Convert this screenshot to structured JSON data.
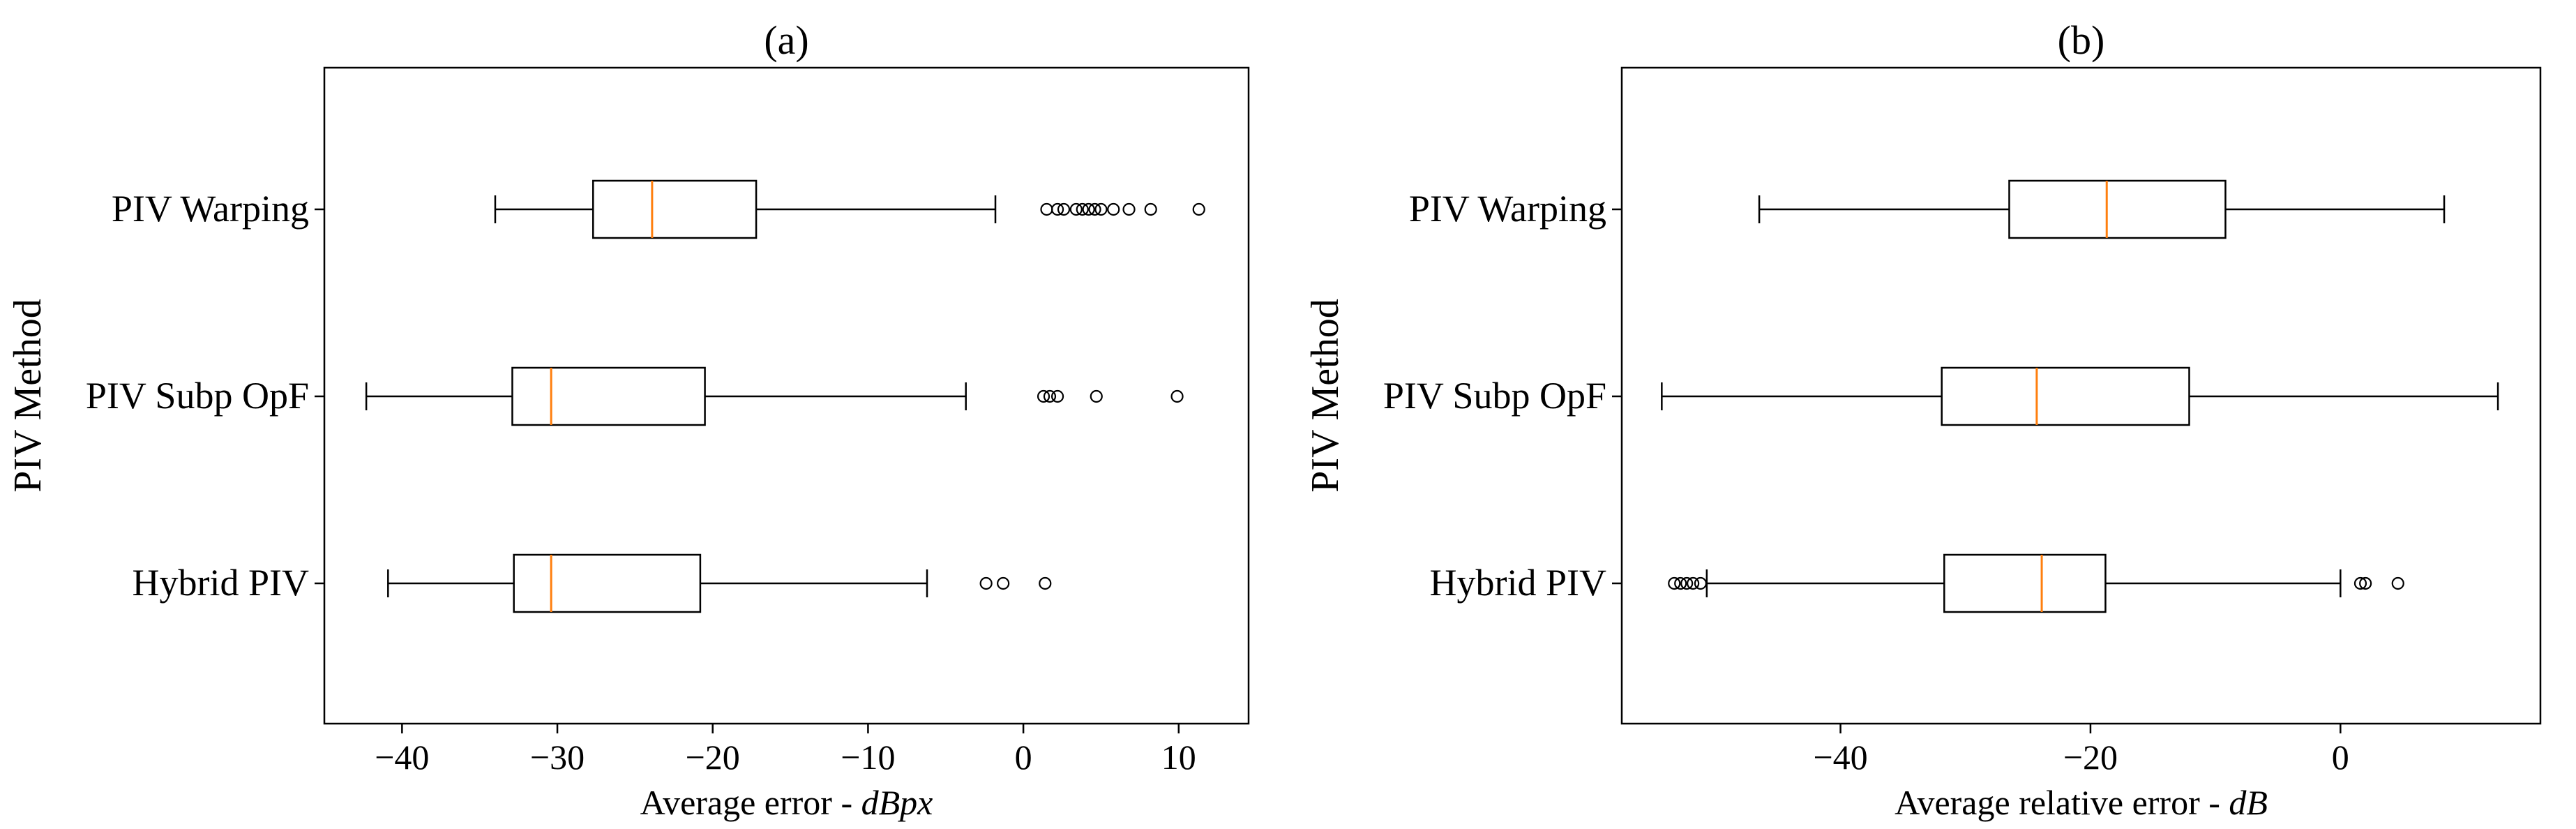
{
  "chart_data": [
    {
      "type": "boxplot",
      "orientation": "horizontal",
      "title": "(a)",
      "xlabel_prefix": "Average error - ",
      "xlabel_unit": "dBpx",
      "ylabel": "PIV Method",
      "xlim": [
        -45,
        14.5
      ],
      "xticks": [
        {
          "value": -40,
          "label": "−40"
        },
        {
          "value": -30,
          "label": "−30"
        },
        {
          "value": -20,
          "label": "−20"
        },
        {
          "value": -10,
          "label": "−10"
        },
        {
          "value": 0,
          "label": "0"
        },
        {
          "value": 10,
          "label": "10"
        }
      ],
      "median_color": "#ff7f0e",
      "series": [
        {
          "name": "PIV Warping",
          "whisker_low": -34,
          "q1": -27.7,
          "median": -23.9,
          "q3": -17.2,
          "whisker_high": -1.8,
          "outliers": [
            1.5,
            2.2,
            2.6,
            3.4,
            3.8,
            4.2,
            4.6,
            5.0,
            5.8,
            6.8,
            8.2,
            11.3
          ]
        },
        {
          "name": "PIV Subp OpF",
          "whisker_low": -42.3,
          "q1": -32.9,
          "median": -30.4,
          "q3": -20.5,
          "whisker_high": -3.7,
          "outliers": [
            1.3,
            1.7,
            2.2,
            4.7,
            9.9
          ]
        },
        {
          "name": "Hybrid PIV",
          "whisker_low": -40.9,
          "q1": -32.8,
          "median": -30.4,
          "q3": -20.8,
          "whisker_high": -6.2,
          "outliers": [
            -2.4,
            -1.3,
            1.4
          ]
        }
      ]
    },
    {
      "type": "boxplot",
      "orientation": "horizontal",
      "title": "(b)",
      "xlabel_prefix": "Average relative error - ",
      "xlabel_unit": "dB",
      "ylabel": "PIV Method",
      "xlim": [
        -57.5,
        16
      ],
      "xticks": [
        {
          "value": -40,
          "label": "−40"
        },
        {
          "value": -20,
          "label": "−20"
        },
        {
          "value": 0,
          "label": "0"
        }
      ],
      "median_color": "#ff7f0e",
      "series": [
        {
          "name": "PIV Warping",
          "whisker_low": -46.5,
          "q1": -26.5,
          "median": -18.7,
          "q3": -9.2,
          "whisker_high": 8.3,
          "outliers": []
        },
        {
          "name": "PIV Subp OpF",
          "whisker_low": -54.3,
          "q1": -31.9,
          "median": -24.3,
          "q3": -12.1,
          "whisker_high": 12.6,
          "outliers": []
        },
        {
          "name": "Hybrid PIV",
          "whisker_low": -50.7,
          "q1": -31.7,
          "median": -23.9,
          "q3": -18.8,
          "whisker_high": 0,
          "outliers": [
            -53.3,
            -52.8,
            -52.3,
            -51.8,
            -51.2,
            1.6,
            2.0,
            4.6
          ]
        }
      ]
    }
  ]
}
